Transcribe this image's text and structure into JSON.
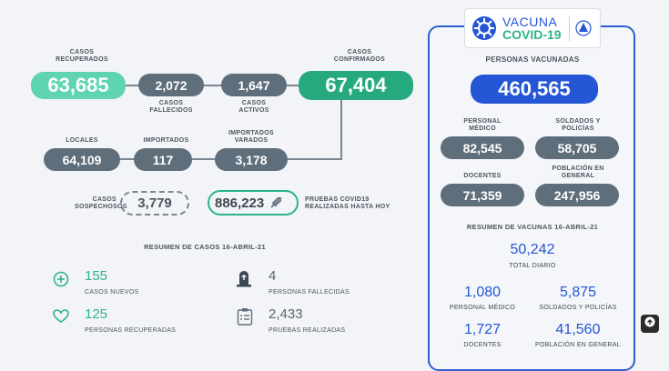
{
  "cases": {
    "recovered": {
      "label1": "CASOS",
      "label2": "RECUPERADOS",
      "value": "63,685"
    },
    "deaths": {
      "value": "2,072",
      "label1": "CASOS",
      "label2": "FALLECIDOS"
    },
    "active": {
      "value": "1,647",
      "label1": "CASOS",
      "label2": "ACTIVOS"
    },
    "confirmed": {
      "label1": "CASOS",
      "label2": "CONFIRMADOS",
      "value": "67,404"
    },
    "local": {
      "label": "LOCALES",
      "value": "64,109"
    },
    "imported": {
      "label": "IMPORTADOS",
      "value": "117"
    },
    "imported_stranded": {
      "label1": "IMPORTADOS",
      "label2": "VARADOS",
      "value": "3,178"
    },
    "suspected": {
      "label1": "CASOS",
      "label2": "SOSPECHOSOS",
      "value": "3,779"
    },
    "tests": {
      "value": "886,223",
      "label1": "PRUEBAS COVID19",
      "label2": "REALIZADAS HASTA HOY"
    }
  },
  "summary": {
    "title": "RESUMEN DE CASOS 16-ABRIL-21",
    "new_cases": {
      "value": "155",
      "label": "CASOS NUEVOS"
    },
    "recovered": {
      "value": "125",
      "label": "PERSONAS RECUPERADAS"
    },
    "deaths": {
      "value": "4",
      "label": "PERSONAS FALLECIDAS"
    },
    "tests": {
      "value": "2,433",
      "label": "PRUEBAS REALIZADAS"
    }
  },
  "vaccine": {
    "logo_line1": "VACUNA",
    "logo_line2": "COVID-19",
    "title": "PERSONAS VACUNADAS",
    "total": "460,565",
    "medical": {
      "label1": "PERSONAL",
      "label2": "MÉDICO",
      "value": "82,545"
    },
    "soldiers": {
      "label1": "SOLDADOS Y",
      "label2": "POLICÍAS",
      "value": "58,705"
    },
    "teachers": {
      "label": "DOCENTES",
      "value": "71,359"
    },
    "general": {
      "label1": "POBLACIÓN EN",
      "label2": "GENERAL",
      "value": "247,956"
    },
    "summary_title": "RESUMEN DE VACUNAS 16-ABRIL-21",
    "daily": {
      "value": "50,242",
      "label": "TOTAL DIARIO"
    },
    "d_medical": {
      "value": "1,080",
      "label": "PERSONAL MÉDICO"
    },
    "d_soldiers": {
      "value": "5,875",
      "label": "SOLDADOS Y POLICÍAS"
    },
    "d_teachers": {
      "value": "1,727",
      "label": "DOCENTES"
    },
    "d_general": {
      "value": "41,560",
      "label": "POBLACIÓN EN GENERAL"
    }
  },
  "colors": {
    "teal": "#2db38a",
    "mint": "#5fd4b0",
    "grey": "#5f6e7b",
    "blue": "#2456d6"
  },
  "icons": [
    "plus-circle-icon",
    "heart-icon",
    "tombstone-icon",
    "clipboard-icon",
    "virus-icon",
    "flag-seal-icon",
    "syringe-icon",
    "arrow-up-icon"
  ]
}
